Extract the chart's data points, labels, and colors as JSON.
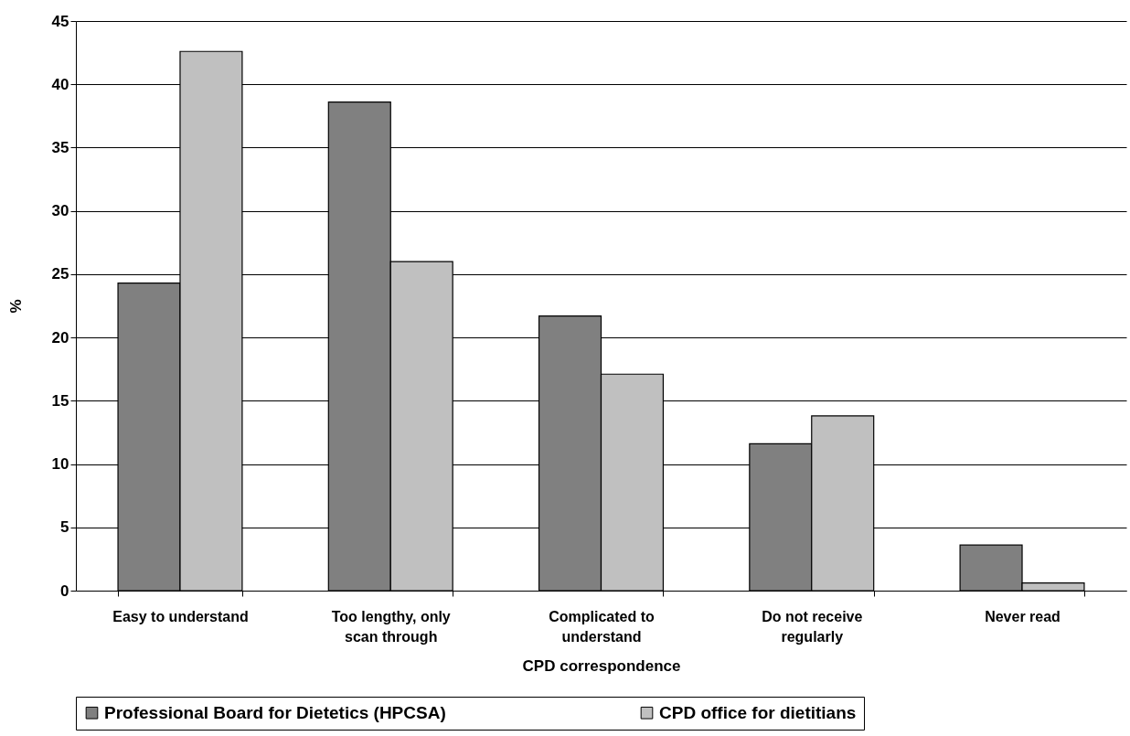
{
  "chart_data": {
    "type": "bar",
    "xlabel": "CPD correspondence",
    "ylabel": "%",
    "categories": [
      "Easy to understand",
      "Too lengthy, only scan through",
      "Complicated to understand",
      "Do not receive regularly",
      "Never read"
    ],
    "series": [
      {
        "name": "Professional Board for Dietetics (HPCSA)",
        "color": "#808080",
        "values": [
          24.3,
          38.6,
          21.7,
          11.6,
          3.6
        ]
      },
      {
        "name": "CPD office for dietitians",
        "color": "#c0c0c0",
        "values": [
          42.6,
          26.0,
          17.1,
          13.8,
          0.6
        ]
      }
    ],
    "ylim": [
      0,
      45
    ],
    "yticks": [
      0,
      5,
      10,
      15,
      20,
      25,
      30,
      35,
      40,
      45
    ],
    "grid": "y",
    "legend": "bottom"
  }
}
